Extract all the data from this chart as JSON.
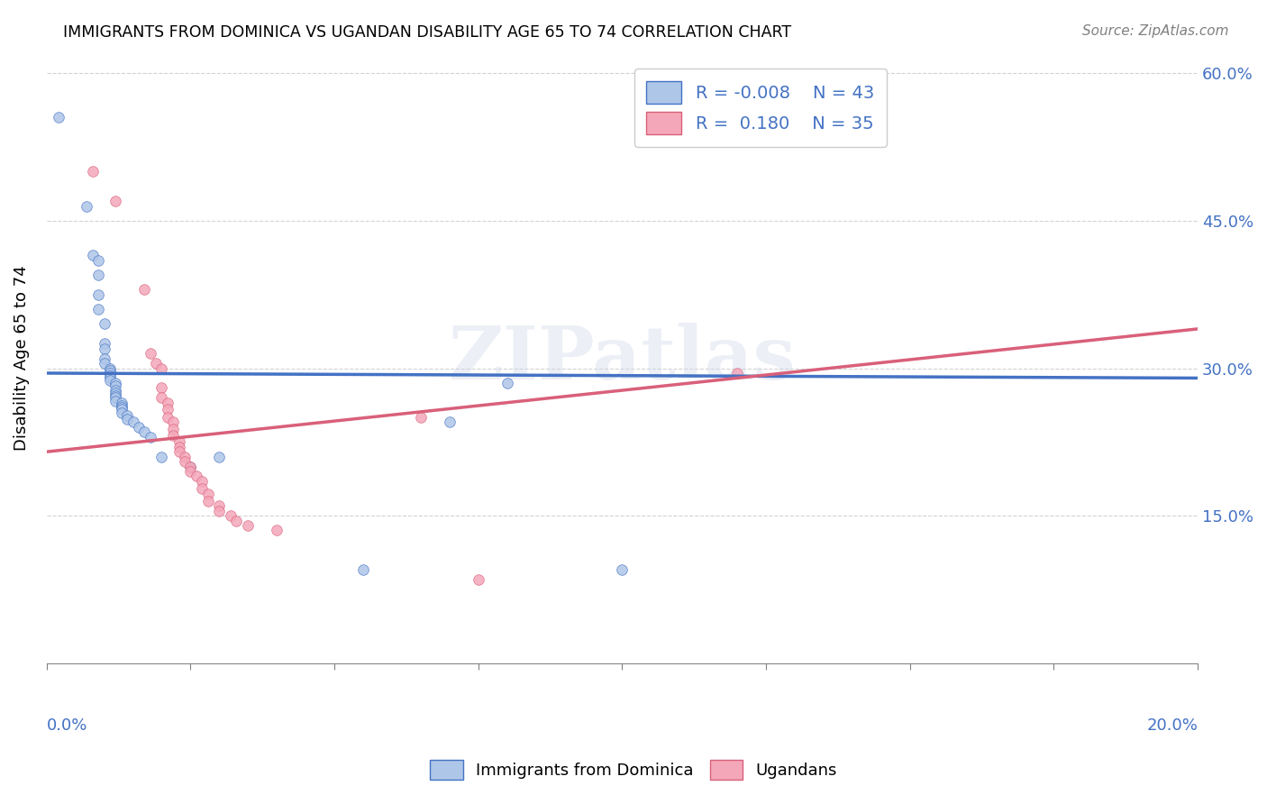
{
  "title": "IMMIGRANTS FROM DOMINICA VS UGANDAN DISABILITY AGE 65 TO 74 CORRELATION CHART",
  "source": "Source: ZipAtlas.com",
  "ylabel": "Disability Age 65 to 74",
  "xlim": [
    0.0,
    0.2
  ],
  "ylim": [
    0.0,
    0.62
  ],
  "yticks": [
    0.0,
    0.15,
    0.3,
    0.45,
    0.6
  ],
  "ytick_labels": [
    "",
    "15.0%",
    "30.0%",
    "45.0%",
    "60.0%"
  ],
  "xticks": [
    0.0,
    0.025,
    0.05,
    0.075,
    0.1,
    0.125,
    0.15,
    0.175,
    0.2
  ],
  "watermark": "ZIPatlas",
  "dominica_color": "#aec6e8",
  "ugandan_color": "#f4a7b9",
  "dominica_line_color": "#4472c4",
  "ugandan_line_color": "#d9607a",
  "dominica_R": -0.008,
  "dominica_N": 43,
  "ugandan_R": 0.18,
  "ugandan_N": 35,
  "dominica_scatter": [
    [
      0.002,
      0.555
    ],
    [
      0.007,
      0.465
    ],
    [
      0.008,
      0.415
    ],
    [
      0.009,
      0.41
    ],
    [
      0.009,
      0.395
    ],
    [
      0.009,
      0.375
    ],
    [
      0.009,
      0.36
    ],
    [
      0.01,
      0.345
    ],
    [
      0.01,
      0.325
    ],
    [
      0.01,
      0.32
    ],
    [
      0.01,
      0.31
    ],
    [
      0.01,
      0.305
    ],
    [
      0.011,
      0.3
    ],
    [
      0.011,
      0.298
    ],
    [
      0.011,
      0.295
    ],
    [
      0.011,
      0.292
    ],
    [
      0.011,
      0.29
    ],
    [
      0.011,
      0.288
    ],
    [
      0.012,
      0.285
    ],
    [
      0.012,
      0.282
    ],
    [
      0.012,
      0.278
    ],
    [
      0.012,
      0.275
    ],
    [
      0.012,
      0.272
    ],
    [
      0.012,
      0.27
    ],
    [
      0.012,
      0.267
    ],
    [
      0.013,
      0.265
    ],
    [
      0.013,
      0.262
    ],
    [
      0.013,
      0.26
    ],
    [
      0.013,
      0.258
    ],
    [
      0.013,
      0.255
    ],
    [
      0.014,
      0.252
    ],
    [
      0.014,
      0.248
    ],
    [
      0.015,
      0.245
    ],
    [
      0.016,
      0.24
    ],
    [
      0.017,
      0.235
    ],
    [
      0.018,
      0.23
    ],
    [
      0.02,
      0.21
    ],
    [
      0.025,
      0.2
    ],
    [
      0.03,
      0.21
    ],
    [
      0.055,
      0.095
    ],
    [
      0.07,
      0.245
    ],
    [
      0.08,
      0.285
    ],
    [
      0.1,
      0.095
    ]
  ],
  "ugandan_scatter": [
    [
      0.008,
      0.5
    ],
    [
      0.012,
      0.47
    ],
    [
      0.017,
      0.38
    ],
    [
      0.018,
      0.315
    ],
    [
      0.019,
      0.305
    ],
    [
      0.02,
      0.3
    ],
    [
      0.02,
      0.28
    ],
    [
      0.02,
      0.27
    ],
    [
      0.021,
      0.265
    ],
    [
      0.021,
      0.258
    ],
    [
      0.021,
      0.25
    ],
    [
      0.022,
      0.245
    ],
    [
      0.022,
      0.238
    ],
    [
      0.022,
      0.232
    ],
    [
      0.023,
      0.225
    ],
    [
      0.023,
      0.22
    ],
    [
      0.023,
      0.215
    ],
    [
      0.024,
      0.21
    ],
    [
      0.024,
      0.205
    ],
    [
      0.025,
      0.2
    ],
    [
      0.025,
      0.195
    ],
    [
      0.026,
      0.19
    ],
    [
      0.027,
      0.185
    ],
    [
      0.027,
      0.178
    ],
    [
      0.028,
      0.172
    ],
    [
      0.028,
      0.165
    ],
    [
      0.03,
      0.16
    ],
    [
      0.03,
      0.155
    ],
    [
      0.032,
      0.15
    ],
    [
      0.033,
      0.145
    ],
    [
      0.035,
      0.14
    ],
    [
      0.04,
      0.135
    ],
    [
      0.065,
      0.25
    ],
    [
      0.075,
      0.085
    ],
    [
      0.12,
      0.295
    ]
  ],
  "dom_line_x": [
    0.0,
    0.2
  ],
  "dom_line_y": [
    0.295,
    0.29
  ],
  "uga_line_x": [
    0.0,
    0.2
  ],
  "uga_line_y": [
    0.215,
    0.34
  ]
}
